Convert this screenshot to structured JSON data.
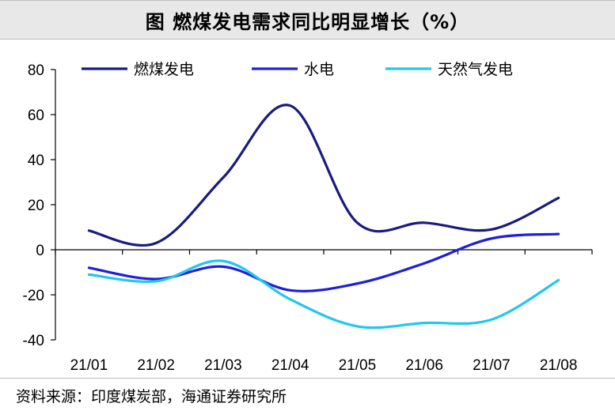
{
  "title": "图  燃煤发电需求同比明显增长（%）",
  "source": "资料来源：印度煤炭部，海通证券研究所",
  "chart_data": {
    "type": "line",
    "categories": [
      "21/01",
      "21/02",
      "21/03",
      "21/04",
      "21/05",
      "21/06",
      "21/07",
      "21/08"
    ],
    "ylim": [
      -40,
      80
    ],
    "yticks": [
      80,
      60,
      40,
      20,
      0,
      -20,
      -40
    ],
    "legend_position": "top",
    "grid": false,
    "series": [
      {
        "name": "燃煤发电",
        "color": "#1a1a80",
        "values": [
          8.5,
          3,
          32,
          64,
          12,
          12,
          9,
          23
        ]
      },
      {
        "name": "水电",
        "color": "#1f1fd9",
        "values": [
          -8,
          -13,
          -7.5,
          -18,
          -15,
          -6,
          5,
          7
        ]
      },
      {
        "name": "天然气发电",
        "color": "#22c6f0",
        "values": [
          -11,
          -14,
          -5,
          -22,
          -34,
          -32.5,
          -31,
          -13.5
        ]
      }
    ]
  }
}
